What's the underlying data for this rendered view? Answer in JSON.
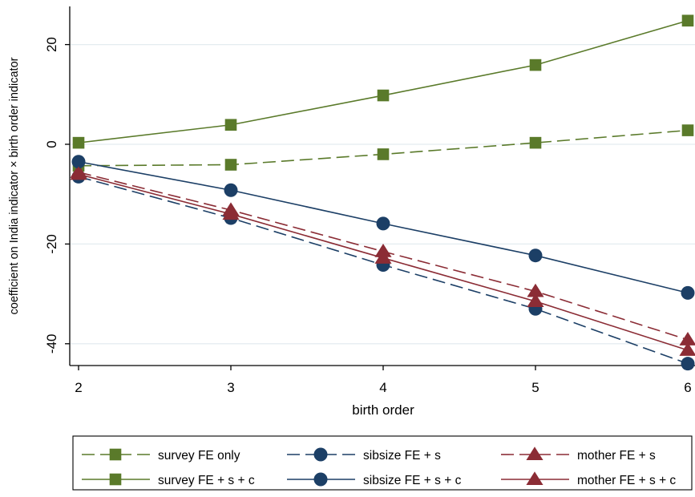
{
  "chart_data": {
    "type": "line",
    "title": "",
    "xlabel": "birth order",
    "ylabel": "coefficient on India indicator × birth order indicator",
    "x": [
      2,
      3,
      4,
      5,
      6
    ],
    "xlim": [
      2,
      6
    ],
    "ylim": [
      -45,
      27
    ],
    "x_ticks": [
      2,
      3,
      4,
      5,
      6
    ],
    "y_ticks": [
      -40,
      -20,
      0,
      20
    ],
    "grid": true,
    "legend_placement": "bottom",
    "series": [
      {
        "name": "survey FE only",
        "values": [
          -4.3,
          -4.1,
          -2.0,
          0.3,
          2.8
        ],
        "color": "#5a7a2a",
        "marker": "square",
        "dash": true
      },
      {
        "name": "sibsize FE + s",
        "values": [
          -6.5,
          -14.8,
          -24.2,
          -33.0,
          -44.0
        ],
        "color": "#1c3f66",
        "marker": "circle",
        "dash": true
      },
      {
        "name": "mother FE + s",
        "values": [
          -5.6,
          -13.2,
          -21.5,
          -29.5,
          -39.2
        ],
        "color": "#8b2c35",
        "marker": "triangle",
        "dash": true
      },
      {
        "name": "survey FE + s + c",
        "values": [
          0.3,
          3.9,
          9.8,
          15.9,
          24.8
        ],
        "color": "#5a7a2a",
        "marker": "square",
        "dash": false
      },
      {
        "name": "sibsize FE + s + c",
        "values": [
          -3.5,
          -9.2,
          -15.9,
          -22.3,
          -29.8
        ],
        "color": "#1c3f66",
        "marker": "circle",
        "dash": false
      },
      {
        "name": "mother FE + s + c",
        "values": [
          -6.0,
          -14.0,
          -22.8,
          -31.5,
          -41.3
        ],
        "color": "#8b2c35",
        "marker": "triangle",
        "dash": false
      }
    ]
  }
}
